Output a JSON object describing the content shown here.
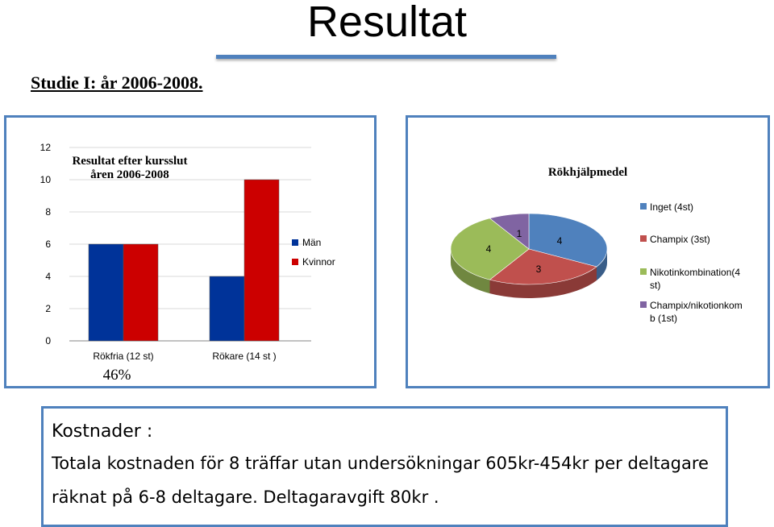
{
  "slide": {
    "title": "Resultat",
    "subtitle": "Studie I: år 2006-2008."
  },
  "chart_data": [
    {
      "type": "bar",
      "title": "Resultat efter kursslut\nåren 2006-2008",
      "categories": [
        "Rökfria (12 st)",
        "Rökare (14 st )"
      ],
      "series": [
        {
          "name": "Män",
          "values": [
            6,
            4
          ],
          "color": "#003399"
        },
        {
          "name": "Kvinnor",
          "values": [
            6,
            10
          ],
          "color": "#cc0000"
        }
      ],
      "ylim": [
        0,
        12
      ],
      "yticks": [
        0,
        2,
        4,
        6,
        8,
        10,
        12
      ],
      "grid": true,
      "legend": "right",
      "annotation": "46%"
    },
    {
      "type": "pie",
      "title": "Rökhjälpmedel",
      "labels": [
        "Inget (4st)",
        "Champix (3st)",
        "Nikotinkombination(4 st)",
        "Champix/nikotionkomb (1st)"
      ],
      "legend_lines": [
        [
          "Inget (4st)"
        ],
        [
          "Champix (3st)"
        ],
        [
          "Nikotinkombination(4",
          "st)"
        ],
        [
          "Champix/nikotionkom",
          "b (1st)"
        ]
      ],
      "values": [
        4,
        3,
        4,
        1
      ],
      "colors": [
        "#4f81bd",
        "#c0504d",
        "#9bbb59",
        "#8064a2"
      ],
      "style": "3d",
      "legend": "right"
    }
  ],
  "costs": {
    "heading": "Kostnader :",
    "line1": "Totala kostnaden  för 8 träffar utan undersökningar 605kr-454kr per deltagare",
    "line2": "räknat på 6-8 deltagare. Deltagaravgift  80kr ."
  }
}
